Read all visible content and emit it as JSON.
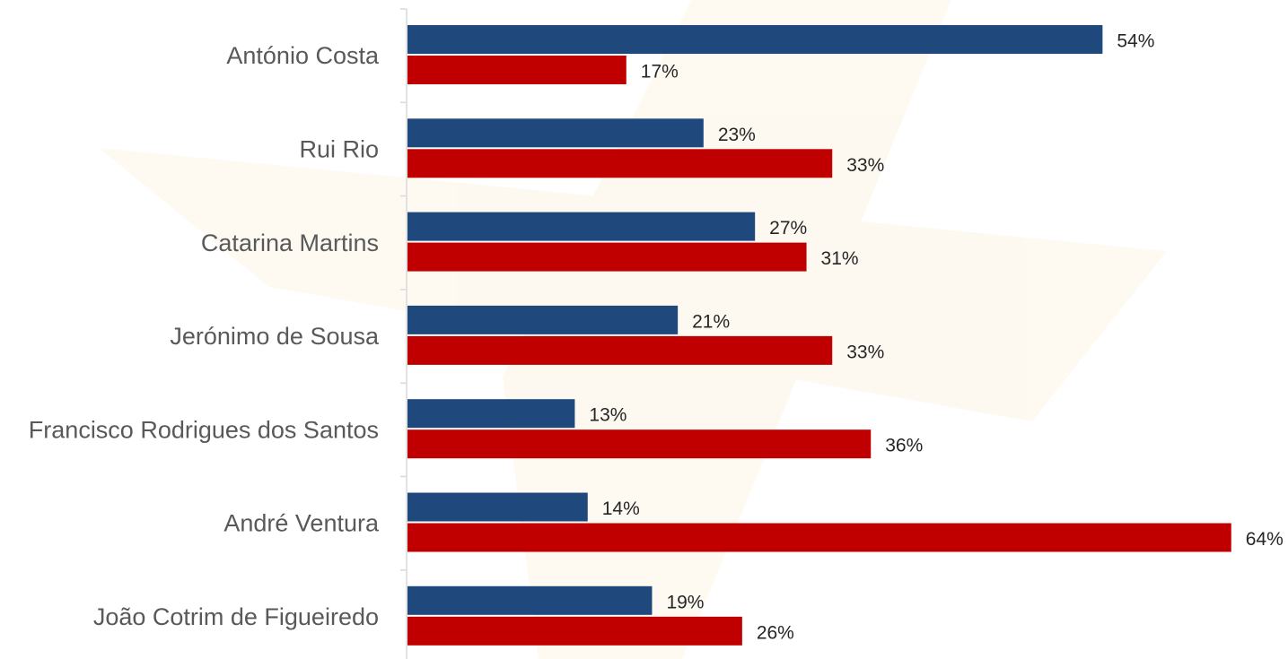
{
  "chart_data": {
    "type": "bar",
    "orientation": "horizontal",
    "categories": [
      "António Costa",
      "Rui Rio",
      "Catarina Martins",
      "Jerónimo de Sousa",
      "Francisco Rodrigues dos Santos",
      "André Ventura",
      "João Cotrim de Figueiredo"
    ],
    "series": [
      {
        "color": "#1F497D",
        "values": [
          54,
          23,
          27,
          21,
          13,
          14,
          19
        ],
        "labels": [
          "54%",
          "23%",
          "27%",
          "21%",
          "13%",
          "14%",
          "19%"
        ]
      },
      {
        "color": "#C00000",
        "values": [
          17,
          33,
          31,
          33,
          36,
          64,
          26
        ],
        "labels": [
          "17%",
          "33%",
          "31%",
          "33%",
          "36%",
          "64%",
          "26%"
        ]
      }
    ],
    "value_unit": "%",
    "xlim": [
      0,
      64
    ],
    "grid": false,
    "legend": "none"
  }
}
